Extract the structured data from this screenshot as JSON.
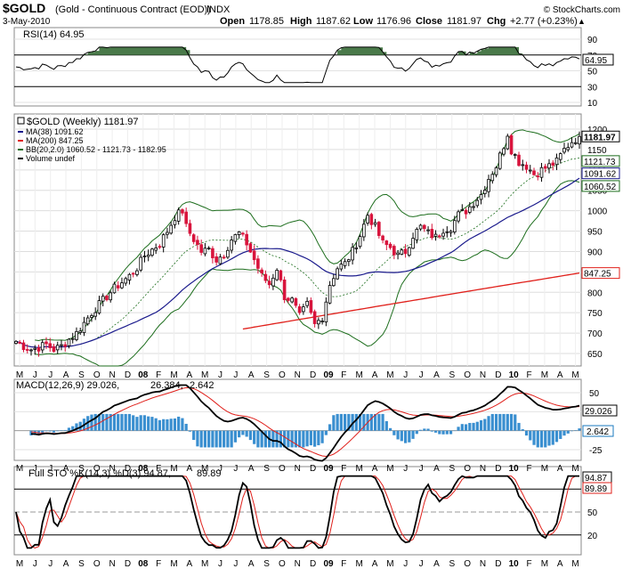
{
  "header": {
    "symbol": "$GOLD",
    "name": "(Gold - Continuous Contract (EOD))",
    "exchange": "INDX",
    "date": "3-May-2010",
    "open_label": "Open",
    "open": "1178.85",
    "high_label": "High",
    "high": "1187.62",
    "low_label": "Low",
    "low": "1176.96",
    "close_label": "Close",
    "close": "1181.97",
    "chg_label": "Chg",
    "chg": "+2.77 (+0.23%)",
    "watermark": "© StockCharts.com",
    "chg_symbol": "▲"
  },
  "rsi": {
    "label": "RSI(14) 64.95",
    "value_tag": "64.95",
    "ticks": [
      "90",
      "70",
      "50",
      "30",
      "10"
    ],
    "levels": [
      70,
      30
    ]
  },
  "price": {
    "label": "$GOLD (Weekly) 1181.97",
    "legend": [
      {
        "text": "MA(38) 1091.62",
        "color": "#1a1a8c"
      },
      {
        "text": "MA(200) 847.25",
        "color": "#e0201b"
      },
      {
        "text": "BB(20,2.0) 1060.52 - 1121.73 - 1182.95",
        "color": "#1d6e1d"
      },
      {
        "text": "Volume undef",
        "color": "#000000"
      }
    ],
    "ticks": [
      "1200",
      "1150",
      "1100",
      "1050",
      "1000",
      "950",
      "900",
      "850",
      "800",
      "750",
      "700",
      "650"
    ],
    "tags": [
      {
        "text": "1181.97",
        "value": 1181.97,
        "fill": "#ffffff",
        "stroke": "#000000",
        "bold": true
      },
      {
        "text": "1121.73",
        "value": 1121.73,
        "fill": "#ffffff",
        "stroke": "#1d6e1d",
        "bold": false
      },
      {
        "text": "1091.62",
        "value": 1091.62,
        "fill": "#ffffff",
        "stroke": "#1a1a8c",
        "bold": false
      },
      {
        "text": "1060.52",
        "value": 1060.52,
        "fill": "#ffffff",
        "stroke": "#1d6e1d",
        "bold": false
      },
      {
        "text": "847.25",
        "value": 847.25,
        "fill": "#ffffff",
        "stroke": "#e0201b",
        "bold": false
      }
    ]
  },
  "macd": {
    "label_main": "MACD(12,26,9) 29.026,",
    "label_signal": "26.384,",
    "label_hist": "2.642",
    "value_tag": "29.026",
    "hist_tag": "2.642",
    "ticks": [
      "50",
      "25",
      "0",
      "-25"
    ]
  },
  "sto": {
    "label_main": "Full STO %K(14,3) %D(3) 94.87,",
    "label_d": "89.89",
    "k_tag": "94.87",
    "d_tag": "89.89",
    "ticks": [
      "80",
      "50",
      "20"
    ]
  },
  "x_axis": {
    "months": [
      "M",
      "J",
      "J",
      "A",
      "S",
      "O",
      "N",
      "D",
      "08",
      "F",
      "M",
      "A",
      "M",
      "J",
      "J",
      "A",
      "S",
      "O",
      "N",
      "D",
      "09",
      "F",
      "M",
      "A",
      "M",
      "J",
      "J",
      "A",
      "S",
      "O",
      "N",
      "D",
      "10",
      "F",
      "M",
      "A",
      "M"
    ]
  },
  "colors": {
    "up": "#000000",
    "down": "#d8143c",
    "ma38": "#1a1a8c",
    "ma200": "#e0201b",
    "bb": "#1d6e1d",
    "macd_hist": "#3a8fd0",
    "rsi_fill": "#4a7a4a"
  },
  "chart_data": {
    "type": "candlestick",
    "title": "$GOLD (Gold - Continuous Contract (EOD)) INDX",
    "period": "Weekly",
    "x_range": [
      "May 2007",
      "May 2010"
    ],
    "y_range": [
      630,
      1230
    ],
    "series": [
      {
        "name": "$GOLD (Weekly)",
        "last": 1181.97,
        "close_path": [
          [
            0,
            680
          ],
          [
            2,
            668
          ],
          [
            4,
            660
          ],
          [
            6,
            665
          ],
          [
            8,
            672
          ],
          [
            10,
            660
          ],
          [
            12,
            668
          ],
          [
            14,
            685
          ],
          [
            16,
            700
          ],
          [
            18,
            725
          ],
          [
            20,
            750
          ],
          [
            22,
            770
          ],
          [
            24,
            790
          ],
          [
            26,
            810
          ],
          [
            28,
            825
          ],
          [
            30,
            840
          ],
          [
            32,
            860
          ],
          [
            34,
            890
          ],
          [
            36,
            905
          ],
          [
            38,
            920
          ],
          [
            40,
            950
          ],
          [
            42,
            985
          ],
          [
            44,
            1000
          ],
          [
            45,
            960
          ],
          [
            47,
            930
          ],
          [
            49,
            900
          ],
          [
            51,
            905
          ],
          [
            53,
            880
          ],
          [
            55,
            895
          ],
          [
            57,
            930
          ],
          [
            59,
            945
          ],
          [
            61,
            920
          ],
          [
            63,
            880
          ],
          [
            65,
            840
          ],
          [
            67,
            820
          ],
          [
            69,
            860
          ],
          [
            71,
            790
          ],
          [
            73,
            780
          ],
          [
            75,
            740
          ],
          [
            77,
            770
          ],
          [
            79,
            720
          ],
          [
            81,
            740
          ],
          [
            83,
            820
          ],
          [
            85,
            860
          ],
          [
            87,
            870
          ],
          [
            89,
            900
          ],
          [
            91,
            940
          ],
          [
            93,
            990
          ],
          [
            95,
            960
          ],
          [
            97,
            920
          ],
          [
            99,
            910
          ],
          [
            101,
            890
          ],
          [
            103,
            900
          ],
          [
            105,
            940
          ],
          [
            107,
            960
          ],
          [
            109,
            945
          ],
          [
            111,
            935
          ],
          [
            113,
            955
          ],
          [
            115,
            960
          ],
          [
            117,
            990
          ],
          [
            119,
            1000
          ],
          [
            121,
            1020
          ],
          [
            123,
            1040
          ],
          [
            125,
            1080
          ],
          [
            127,
            1110
          ],
          [
            129,
            1160
          ],
          [
            130,
            1190
          ],
          [
            131,
            1150
          ],
          [
            133,
            1120
          ],
          [
            135,
            1110
          ],
          [
            137,
            1090
          ],
          [
            139,
            1100
          ],
          [
            141,
            1110
          ],
          [
            143,
            1120
          ],
          [
            145,
            1150
          ],
          [
            147,
            1170
          ],
          [
            149,
            1181.97
          ]
        ]
      },
      {
        "name": "MA(38)",
        "last": 1091.62
      },
      {
        "name": "MA(200)",
        "last": 847.25
      },
      {
        "name": "BB(20,2.0)",
        "values": [
          1060.52,
          1121.73,
          1182.95
        ]
      }
    ],
    "indicators": {
      "RSI(14)": 64.95,
      "MACD(12,26,9)": [
        29.026,
        26.384,
        2.642
      ],
      "Full STO %K(14,3) %D(3)": [
        94.87,
        89.89
      ]
    }
  }
}
